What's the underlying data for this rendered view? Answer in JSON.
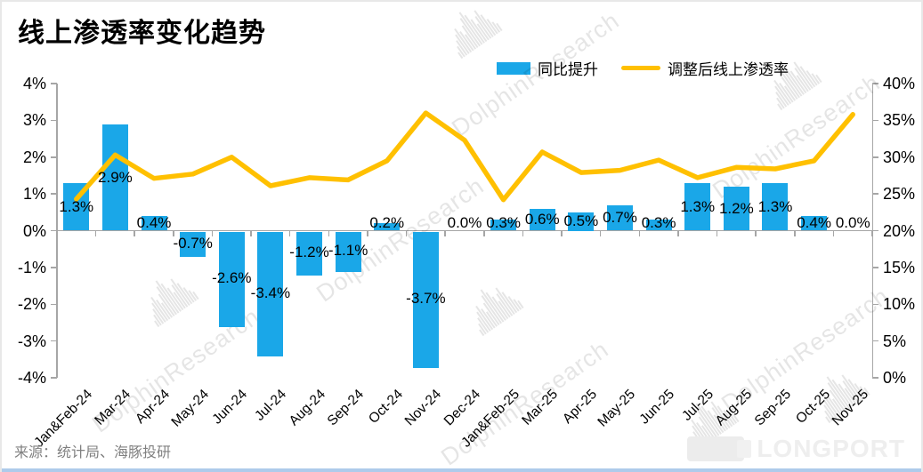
{
  "title": "线上渗透率变化趋势",
  "source": "来源：统计局、海豚投研",
  "brand": {
    "watermark": "DolphinResearch",
    "logo_text": "LONGPORT"
  },
  "colors": {
    "bar": "#1AA7E8",
    "line": "#FFC000",
    "axis": "#A6A6A6",
    "text": "#000000",
    "source_text": "#808080"
  },
  "legend": [
    {
      "label": "同比提升",
      "type": "bar",
      "color": "#1AA7E8"
    },
    {
      "label": "调整后线上渗透率",
      "type": "line",
      "color": "#FFC000"
    }
  ],
  "chart_data": {
    "type": "bar",
    "title": "线上渗透率变化趋势",
    "categories": [
      "Jan&Feb-24",
      "Mar-24",
      "Apr-24",
      "May-24",
      "Jun-24",
      "Jul-24",
      "Aug-24",
      "Sep-24",
      "Oct-24",
      "Nov-24",
      "Dec-24",
      "Jan&Feb-25",
      "Mar-25",
      "Apr-25",
      "May-25",
      "Jun-25",
      "Jul-25",
      "Aug-25",
      "Sep-25",
      "Oct-25",
      "Nov-25"
    ],
    "series": [
      {
        "name": "同比提升",
        "type": "bar",
        "axis": "left",
        "color": "#1AA7E8",
        "values": [
          1.3,
          2.9,
          0.4,
          -0.7,
          -2.6,
          -3.4,
          -1.2,
          -1.1,
          0.2,
          -3.7,
          0.0,
          0.3,
          0.6,
          0.5,
          0.7,
          0.3,
          1.3,
          1.2,
          1.3,
          0.4,
          0.0
        ],
        "labels": [
          "1.3%",
          "2.9%",
          "0.4%",
          "-0.7%",
          "-2.6%",
          "-3.4%",
          "-1.2%",
          "-1.1%",
          "0.2%",
          "-3.7%",
          "0.0%",
          "0.3%",
          "0.6%",
          "0.5%",
          "0.7%",
          "0.3%",
          "1.3%",
          "1.2%",
          "1.3%",
          "0.4%",
          "0.0%"
        ]
      },
      {
        "name": "调整后线上渗透率",
        "type": "line",
        "axis": "right",
        "color": "#FFC000",
        "values": [
          24.3,
          30.3,
          27.1,
          27.7,
          30.0,
          26.1,
          27.2,
          26.9,
          29.5,
          36.0,
          32.3,
          24.2,
          30.7,
          27.9,
          28.2,
          29.6,
          27.2,
          28.6,
          28.4,
          29.5,
          35.8
        ]
      }
    ],
    "left_axis": {
      "min": -4,
      "max": 4,
      "ticks": [
        "4%",
        "3%",
        "2%",
        "1%",
        "0%",
        "-1%",
        "-2%",
        "-3%",
        "-4%"
      ]
    },
    "right_axis": {
      "min": 0,
      "max": 40,
      "ticks": [
        "40%",
        "35%",
        "30%",
        "25%",
        "20%",
        "15%",
        "10%",
        "5%",
        "0%"
      ]
    },
    "grid": false,
    "legend_position": "top"
  }
}
